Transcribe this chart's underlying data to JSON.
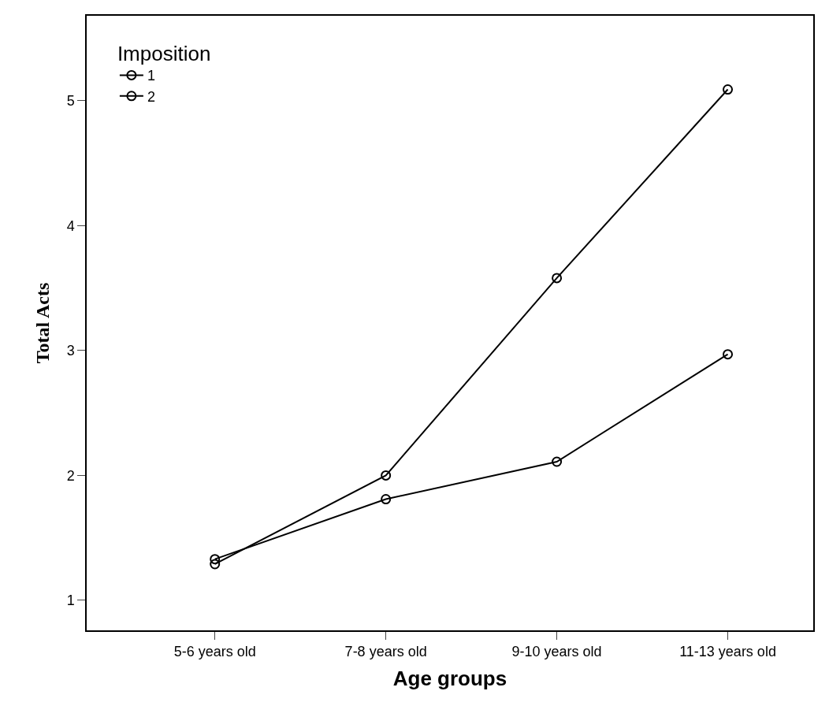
{
  "chart_data": {
    "type": "line",
    "xlabel": "Age groups",
    "ylabel": "Total Acts",
    "legend_title": "Imposition",
    "categories": [
      "5-6 years old",
      "7-8 years old",
      "9-10 years old",
      "11-13 years old"
    ],
    "series": [
      {
        "name": "1",
        "color": "#000000",
        "values": [
          1.29,
          2.0,
          3.58,
          5.09
        ]
      },
      {
        "name": "2",
        "color": "#000000",
        "values": [
          1.33,
          1.81,
          2.11,
          2.97
        ]
      }
    ],
    "ylim": [
      0.76,
      5.68
    ],
    "yticks": [
      1,
      2,
      3,
      4,
      5
    ],
    "legend": "top left",
    "marker": "circle",
    "line_style": "solid"
  }
}
